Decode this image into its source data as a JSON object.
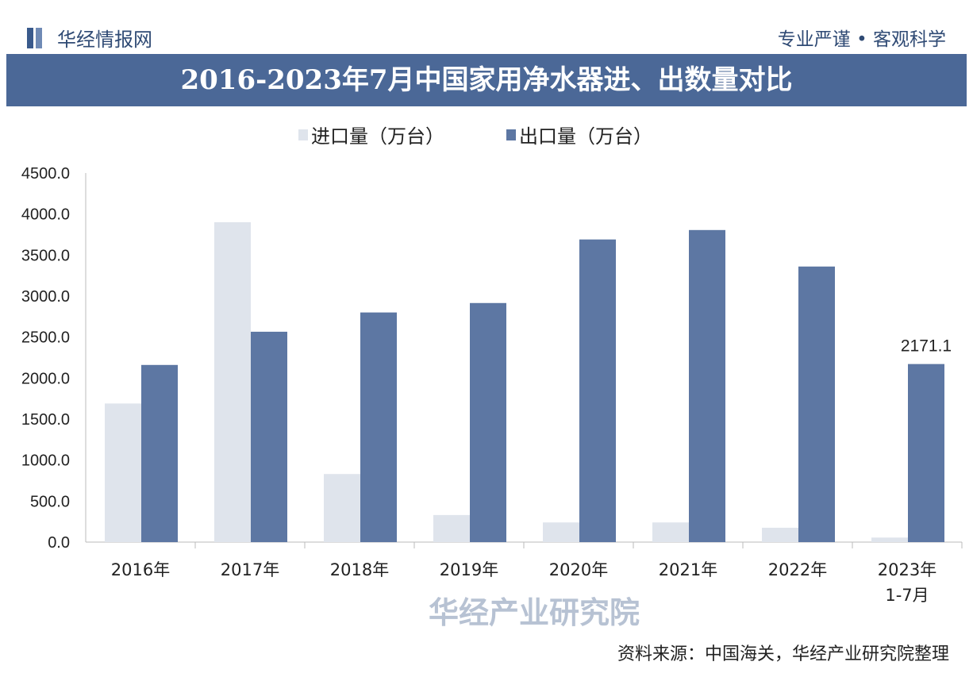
{
  "header": {
    "logo_text": "华经情报网",
    "slogan": "专业严谨 • 客观科学"
  },
  "footer": {
    "source": "资料来源：中国海关，华经产业研究院整理",
    "watermark": "华经产业研究院"
  },
  "colors": {
    "import": "#dfe4ec",
    "export": "#5d77a3",
    "title_bg": "#4b6897"
  },
  "chart_data": {
    "type": "bar",
    "title": "2016-2023年7月中国家用净水器进、出数量对比",
    "categories": [
      "2016年",
      "2017年",
      "2018年",
      "2019年",
      "2020年",
      "2021年",
      "2022年",
      "2023年\n1-7月"
    ],
    "series": [
      {
        "name": "进口量（万台）",
        "values": [
          1690,
          3900,
          830,
          330,
          240,
          240,
          175,
          55
        ]
      },
      {
        "name": "出口量（万台）",
        "values": [
          2160,
          2565,
          2800,
          2915,
          3690,
          3805,
          3360,
          2171.1
        ]
      }
    ],
    "data_labels": [
      {
        "series": 1,
        "index": 7,
        "text": "2171.1"
      }
    ],
    "yticks": [
      "0.0",
      "500.0",
      "1000.0",
      "1500.0",
      "2000.0",
      "2500.0",
      "3000.0",
      "3500.0",
      "4000.0",
      "4500.0"
    ],
    "ylim": [
      0,
      4500
    ],
    "legend": "top-center",
    "xlabel": "",
    "ylabel": ""
  }
}
